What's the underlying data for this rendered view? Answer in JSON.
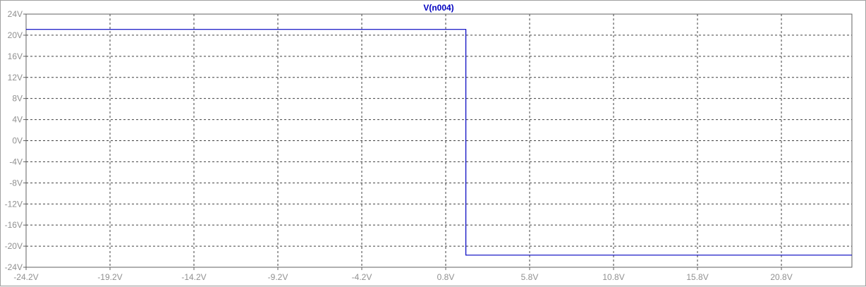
{
  "chart_data": {
    "type": "line",
    "title": "V(n004)",
    "xlabel": "",
    "ylabel": "",
    "xlim": [
      -24.2,
      25.0
    ],
    "ylim": [
      -24,
      24
    ],
    "x_ticks": [
      "-24.2V",
      "-19.2V",
      "-14.2V",
      "-9.2V",
      "-4.2V",
      "0.8V",
      "5.8V",
      "10.8V",
      "15.8V",
      "20.8V"
    ],
    "x_tick_values": [
      -24.2,
      -19.2,
      -14.2,
      -9.2,
      -4.2,
      0.8,
      5.8,
      10.8,
      15.8,
      20.8
    ],
    "y_ticks": [
      "24V",
      "20V",
      "16V",
      "12V",
      "8V",
      "4V",
      "0V",
      "-4V",
      "-8V",
      "-12V",
      "-16V",
      "-20V",
      "-24V"
    ],
    "y_tick_values": [
      24,
      20,
      16,
      12,
      8,
      4,
      0,
      -4,
      -8,
      -12,
      -16,
      -20,
      -24
    ],
    "grid": true,
    "series": [
      {
        "name": "V(n004)",
        "color": "#0000c0",
        "x": [
          -24.2,
          2.0,
          2.0,
          25.0
        ],
        "y": [
          21.1,
          21.1,
          -21.7,
          -21.7
        ]
      }
    ]
  }
}
